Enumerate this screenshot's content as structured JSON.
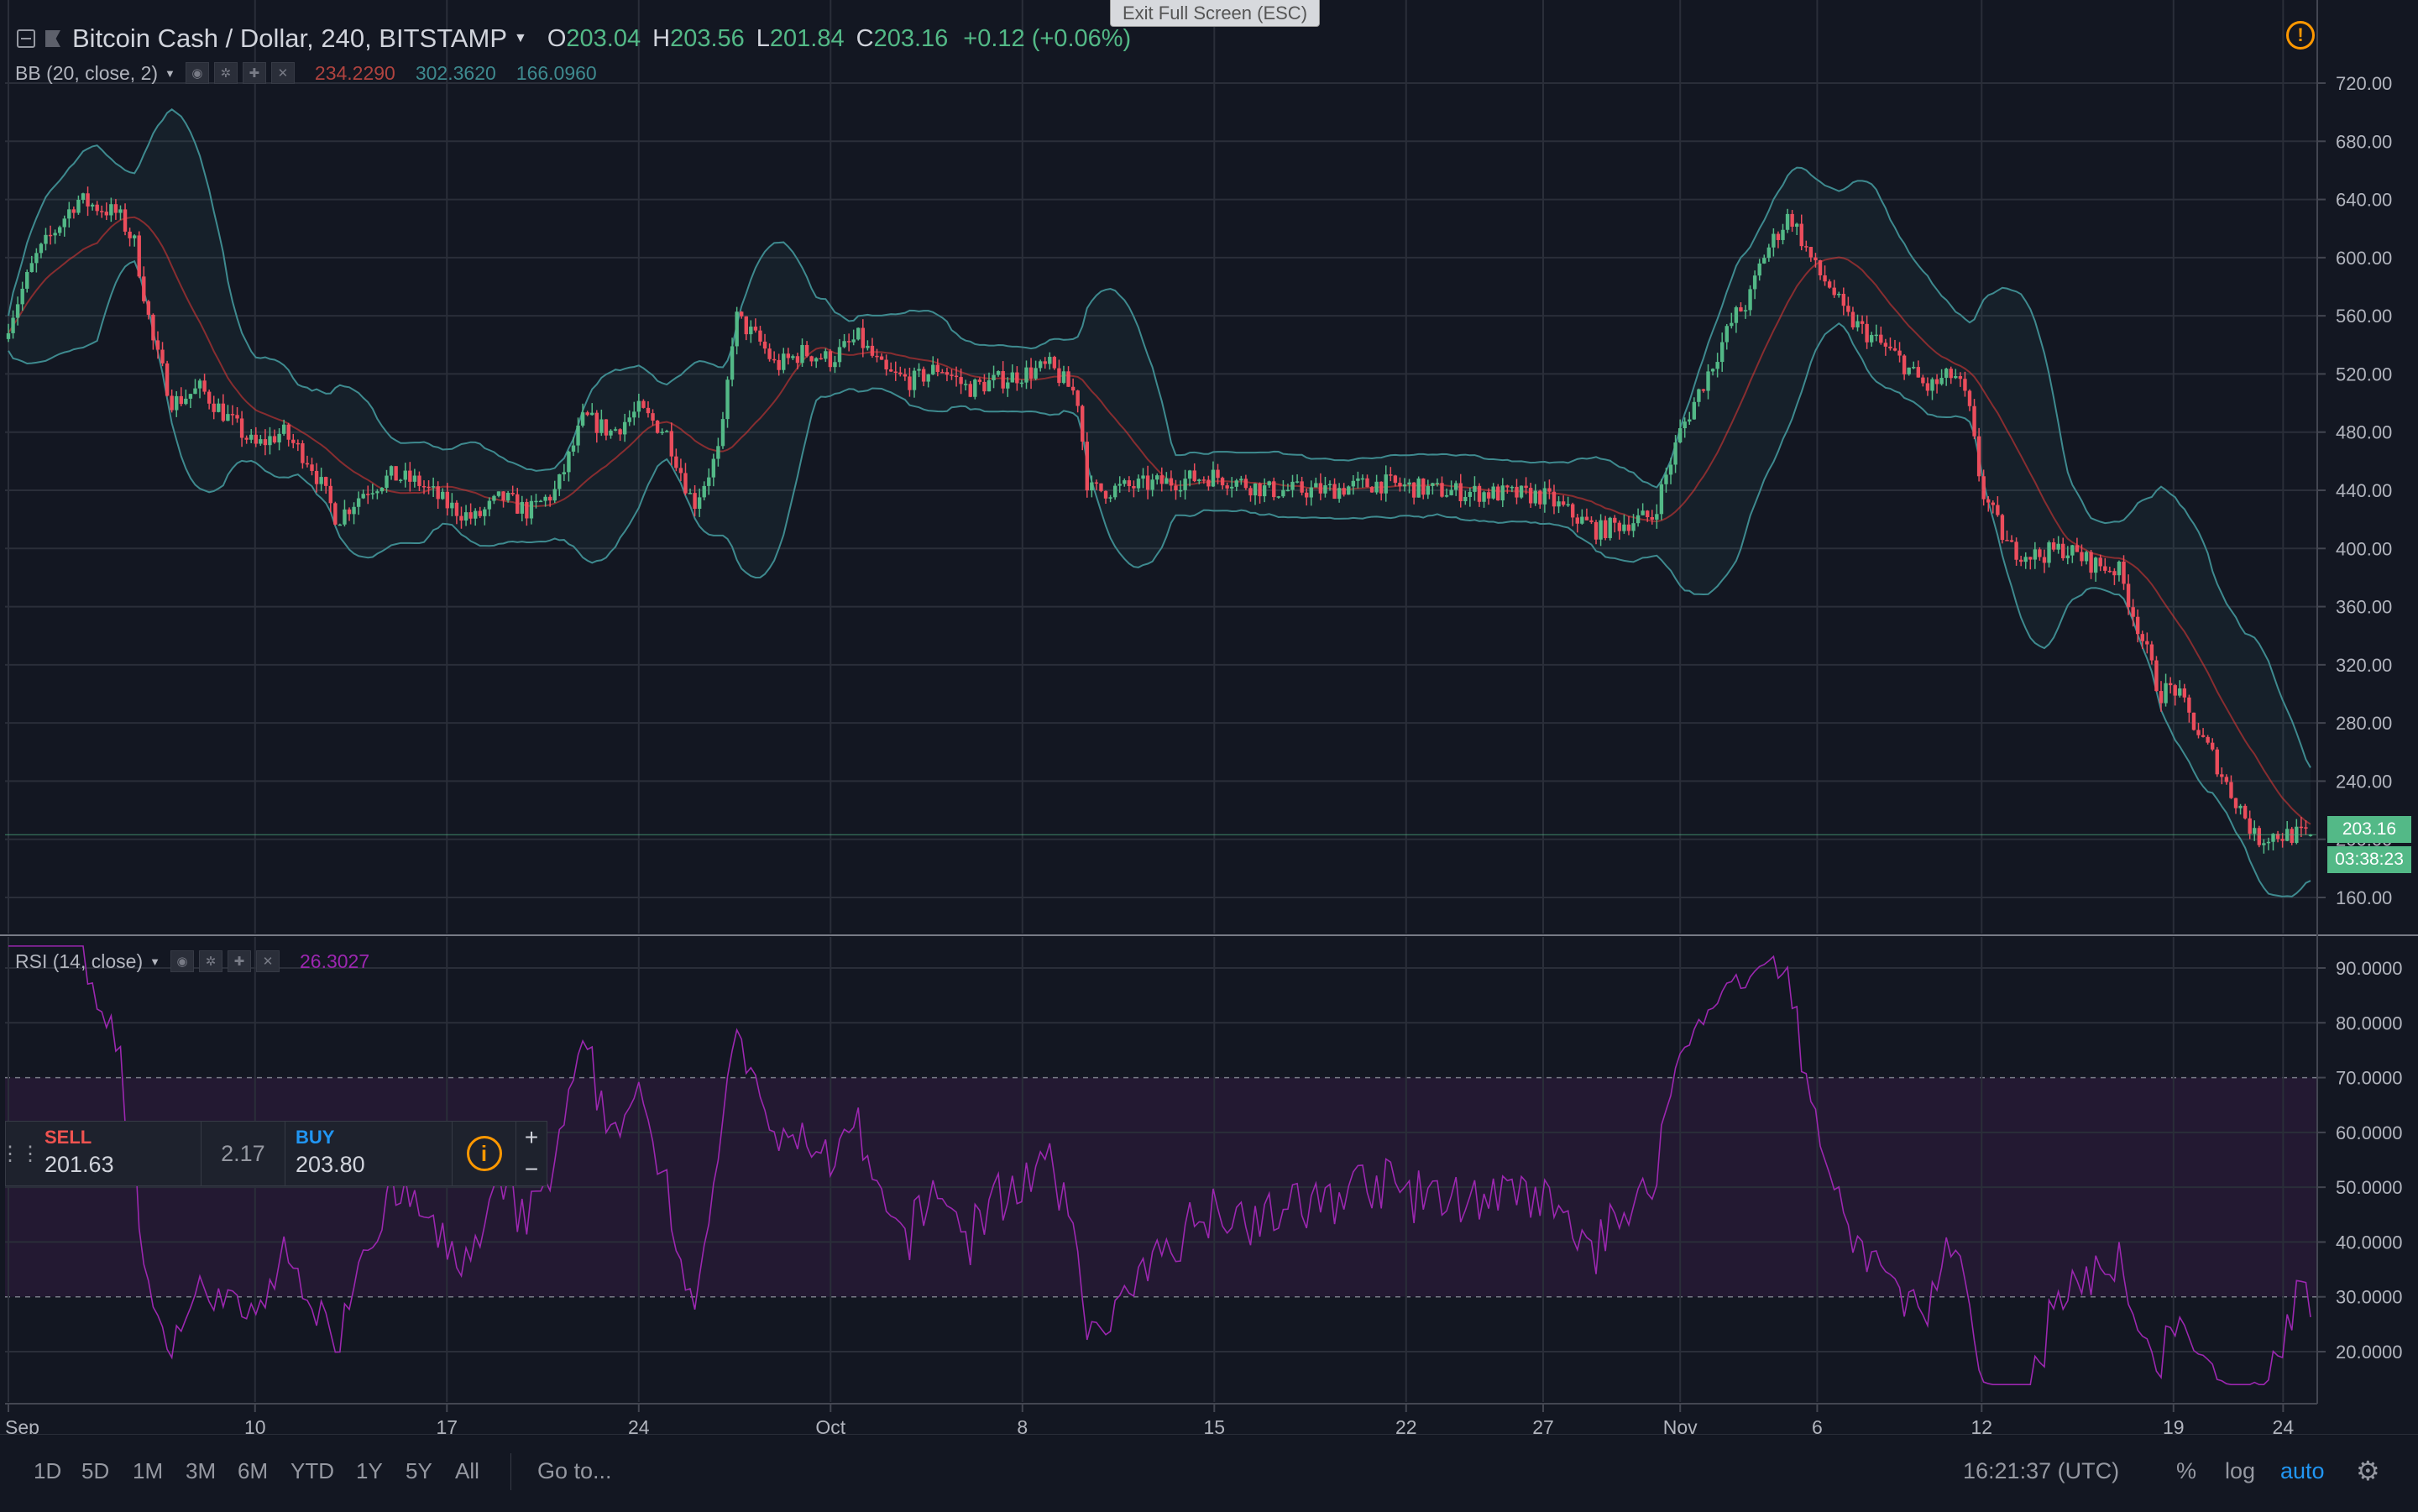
{
  "window": {
    "exit_fullscreen": "Exit Full Screen (ESC)"
  },
  "symbol": {
    "name": "Bitcoin Cash / Dollar, 240, BITSTAMP",
    "open_label": "O",
    "open": "203.04",
    "high_label": "H",
    "high": "203.56",
    "low_label": "L",
    "low": "201.84",
    "close_label": "C",
    "close": "203.16",
    "change": "+0.12 (+0.06%)"
  },
  "bb": {
    "label": "BB (20, close, 2)",
    "basis": "234.2290",
    "upper": "302.3620",
    "lower": "166.0960"
  },
  "rsi": {
    "label": "RSI (14, close)",
    "value": "26.3027"
  },
  "price_tags": {
    "last": "203.16",
    "countdown": "03:38:23"
  },
  "trade": {
    "sell_label": "SELL",
    "sell_price": "201.63",
    "spread": "2.17",
    "buy_label": "BUY",
    "buy_price": "203.80"
  },
  "bottom": {
    "ranges": [
      "1D",
      "5D",
      "1M",
      "3M",
      "6M",
      "YTD",
      "1Y",
      "5Y",
      "All"
    ],
    "goto": "Go to...",
    "clock": "16:21:37 (UTC)",
    "percent": "%",
    "log": "log",
    "auto": "auto"
  },
  "colors": {
    "bg": "#131722",
    "up": "#53b987",
    "down": "#eb4d5c",
    "rsi": "#9c27b0",
    "bb_band": "#3e8a8f",
    "bb_basis": "#e53935"
  },
  "chart_data": [
    {
      "type": "candlestick",
      "title": "Bitcoin Cash / Dollar, 240, BITSTAMP",
      "xlabel": "",
      "ylabel": "",
      "x_ticks": [
        "Sep",
        "10",
        "17",
        "24",
        "Oct",
        "8",
        "15",
        "22",
        "27",
        "Nov",
        "6",
        "12",
        "19",
        "24"
      ],
      "y_ticks": [
        160,
        200,
        240,
        280,
        320,
        360,
        400,
        440,
        480,
        520,
        560,
        600,
        640,
        680,
        720
      ],
      "ylim": [
        148,
        728
      ],
      "grid": true,
      "close_path": {
        "x_days": [
          0,
          1,
          2.5,
          4,
          4.6,
          5.3,
          6,
          7,
          8,
          9,
          10,
          11,
          12,
          13,
          14,
          15,
          16,
          17,
          18,
          19,
          20,
          21,
          22,
          23,
          24,
          25,
          26,
          26.5,
          27.5,
          28,
          29,
          30,
          31,
          32,
          33,
          34,
          35,
          36,
          37,
          38,
          39,
          39.4,
          40,
          42,
          44,
          46,
          48,
          50,
          52,
          54,
          56,
          58,
          59,
          60,
          61,
          62,
          63,
          63.5,
          64,
          65,
          66,
          66.5,
          67,
          68,
          69,
          70,
          70.5,
          71,
          71.5,
          72,
          73,
          74,
          75,
          76,
          77,
          78,
          78.5,
          79,
          80,
          80.5,
          81,
          81.5,
          82,
          82.6
        ],
        "close": [
          555,
          600,
          640,
          630,
          610,
          540,
          500,
          510,
          490,
          470,
          480,
          460,
          420,
          440,
          450,
          445,
          430,
          420,
          435,
          425,
          440,
          490,
          480,
          495,
          480,
          430,
          470,
          560,
          540,
          525,
          535,
          530,
          545,
          520,
          515,
          525,
          510,
          515,
          520,
          525,
          505,
          440,
          440,
          445,
          450,
          440,
          440,
          445,
          440,
          438,
          436,
          412,
          418,
          422,
          480,
          520,
          560,
          570,
          600,
          630,
          590,
          580,
          560,
          545,
          530,
          510,
          515,
          520,
          500,
          440,
          400,
          395,
          400,
          390,
          385,
          330,
          300,
          305,
          270,
          255,
          235,
          220,
          200,
          203
        ]
      }
    },
    {
      "type": "line",
      "title": "RSI (14, close)",
      "xlabel": "",
      "ylabel": "",
      "y_ticks": [
        20,
        30,
        40,
        50,
        60,
        70,
        80,
        90
      ],
      "ylim": [
        13,
        95
      ],
      "overbought": 70,
      "oversold": 30,
      "last": 26.3027
    }
  ]
}
